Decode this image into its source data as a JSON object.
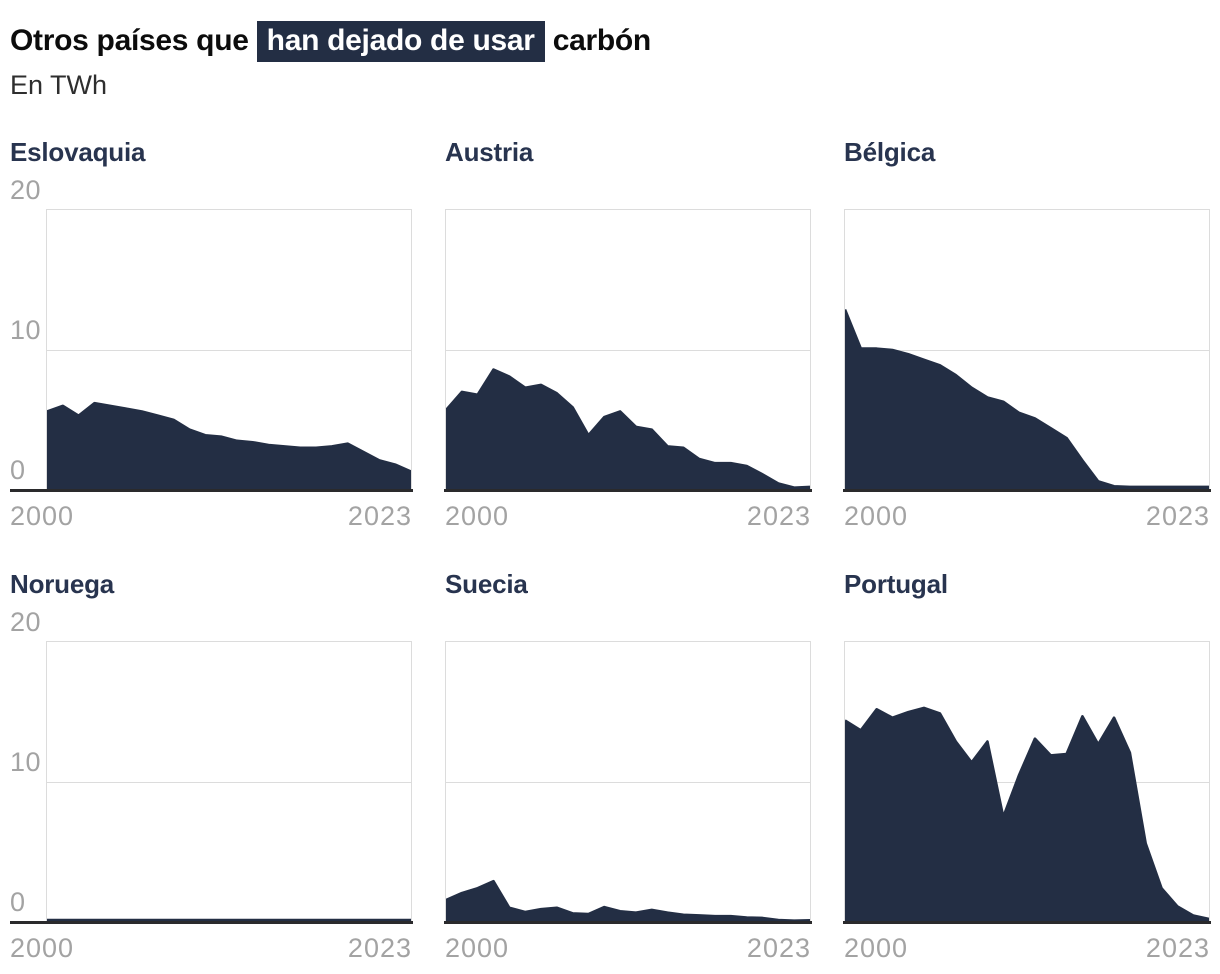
{
  "header": {
    "title_prefix": "Otros países que",
    "title_highlight": "han dejado de usar",
    "title_suffix": "carbón",
    "subtitle": "En TWh"
  },
  "colors": {
    "area_fill": "#232e44",
    "highlight_bg": "#232e44",
    "highlight_text": "#ffffff",
    "country_title": "#28344f",
    "tick_label": "#a3a3a3",
    "gridline": "#dcdcdc",
    "axis_line": "#2a2a2c",
    "title_text": "#0c0c0c"
  },
  "chart_data": [
    {
      "type": "area",
      "title": "Eslovaquia",
      "unit": "TWh",
      "x_start": 2000,
      "x_end": 2023,
      "values": [
        5.6,
        6.0,
        5.3,
        6.2,
        6.0,
        5.8,
        5.6,
        5.3,
        5.0,
        4.3,
        3.9,
        3.8,
        3.5,
        3.4,
        3.2,
        3.1,
        3.0,
        3.0,
        3.1,
        3.3,
        2.7,
        2.1,
        1.8,
        1.3
      ],
      "ylim": [
        0,
        20
      ],
      "yticks": [
        20,
        10,
        0
      ],
      "xticks": [
        "2000",
        "2023"
      ],
      "show_y_axis_labels": true,
      "grid": true
    },
    {
      "type": "area",
      "title": "Austria",
      "unit": "TWh",
      "x_start": 2000,
      "x_end": 2023,
      "values": [
        5.7,
        7.0,
        6.8,
        8.6,
        8.1,
        7.3,
        7.5,
        6.9,
        5.9,
        3.9,
        5.2,
        5.6,
        4.5,
        4.3,
        3.1,
        3.0,
        2.2,
        1.9,
        1.9,
        1.7,
        1.1,
        0.45,
        0.15,
        0.2
      ],
      "ylim": [
        0,
        20
      ],
      "yticks": [
        20,
        10,
        0
      ],
      "xticks": [
        "2000",
        "2023"
      ],
      "show_y_axis_labels": false,
      "grid": true
    },
    {
      "type": "area",
      "title": "Bélgica",
      "unit": "TWh",
      "x_start": 2000,
      "x_end": 2023,
      "values": [
        12.9,
        10.1,
        10.1,
        10.0,
        9.7,
        9.3,
        8.9,
        8.2,
        7.3,
        6.6,
        6.3,
        5.5,
        5.1,
        4.4,
        3.7,
        2.1,
        0.6,
        0.25,
        0.2,
        0.2,
        0.2,
        0.2,
        0.2,
        0.2
      ],
      "ylim": [
        0,
        20
      ],
      "yticks": [
        20,
        10,
        0
      ],
      "xticks": [
        "2000",
        "2023"
      ],
      "show_y_axis_labels": false,
      "grid": true
    },
    {
      "type": "area",
      "title": "Noruega",
      "unit": "TWh",
      "x_start": 2000,
      "x_end": 2023,
      "values": [
        0.12,
        0.12,
        0.12,
        0.12,
        0.12,
        0.12,
        0.12,
        0.12,
        0.12,
        0.12,
        0.12,
        0.12,
        0.12,
        0.12,
        0.12,
        0.12,
        0.12,
        0.12,
        0.12,
        0.12,
        0.12,
        0.12,
        0.12,
        0.12
      ],
      "ylim": [
        0,
        20
      ],
      "yticks": [
        20,
        10,
        0
      ],
      "xticks": [
        "2000",
        "2023"
      ],
      "show_y_axis_labels": true,
      "grid": true
    },
    {
      "type": "area",
      "title": "Suecia",
      "unit": "TWh",
      "x_start": 2000,
      "x_end": 2023,
      "values": [
        1.55,
        2.05,
        2.4,
        2.9,
        1.0,
        0.7,
        0.9,
        1.0,
        0.6,
        0.55,
        1.05,
        0.75,
        0.65,
        0.85,
        0.65,
        0.5,
        0.45,
        0.4,
        0.4,
        0.3,
        0.27,
        0.12,
        0.07,
        0.1
      ],
      "ylim": [
        0,
        20
      ],
      "yticks": [
        20,
        10,
        0
      ],
      "xticks": [
        "2000",
        "2023"
      ],
      "show_y_axis_labels": false,
      "grid": true
    },
    {
      "type": "area",
      "title": "Portugal",
      "unit": "TWh",
      "x_start": 2000,
      "x_end": 2023,
      "values": [
        14.4,
        13.7,
        15.2,
        14.6,
        15.0,
        15.3,
        14.9,
        12.9,
        11.4,
        12.9,
        7.5,
        10.5,
        13.1,
        11.9,
        12.0,
        14.7,
        12.7,
        14.6,
        12.1,
        5.6,
        2.4,
        1.1,
        0.45,
        0.2
      ],
      "ylim": [
        0,
        20
      ],
      "yticks": [
        20,
        10,
        0
      ],
      "xticks": [
        "2000",
        "2023"
      ],
      "show_y_axis_labels": false,
      "grid": true
    }
  ]
}
